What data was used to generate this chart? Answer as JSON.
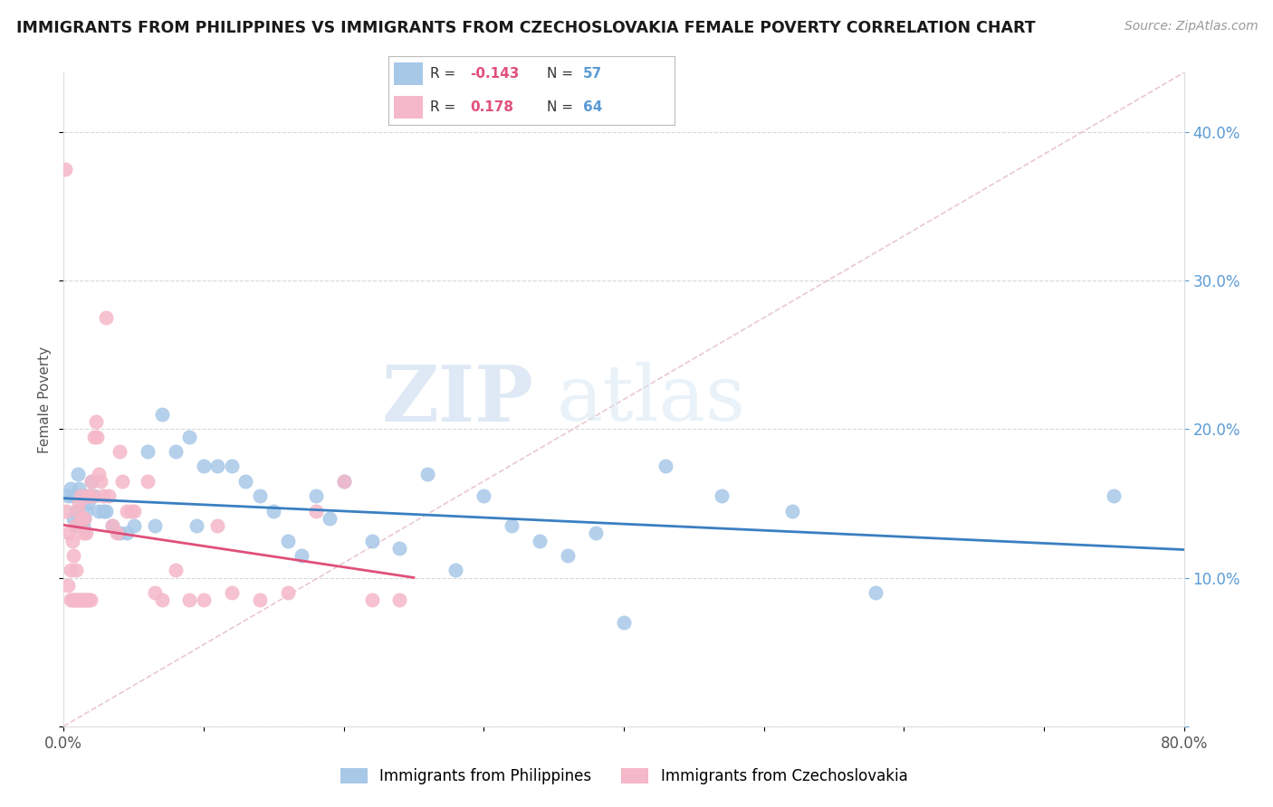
{
  "title": "IMMIGRANTS FROM PHILIPPINES VS IMMIGRANTS FROM CZECHOSLOVAKIA FEMALE POVERTY CORRELATION CHART",
  "source": "Source: ZipAtlas.com",
  "ylabel": "Female Poverty",
  "yticks": [
    0.0,
    0.1,
    0.2,
    0.3,
    0.4
  ],
  "ytick_labels_right": [
    "",
    "10.0%",
    "20.0%",
    "30.0%",
    "40.0%"
  ],
  "xlim": [
    0.0,
    0.8
  ],
  "ylim": [
    0.0,
    0.44
  ],
  "legend1_label": "Immigrants from Philippines",
  "legend2_label": "Immigrants from Czechoslovakia",
  "r1": "-0.143",
  "n1": "57",
  "r2": "0.178",
  "n2": "64",
  "color_blue": "#a8c8e8",
  "color_pink": "#f5b8c8",
  "color_blue_line": "#3a7fc1",
  "color_pink_line": "#e0507a",
  "color_tick": "#5b9bd5",
  "philippines_x": [
    0.003,
    0.005,
    0.006,
    0.007,
    0.008,
    0.009,
    0.01,
    0.01,
    0.011,
    0.012,
    0.013,
    0.014,
    0.015,
    0.016,
    0.017,
    0.018,
    0.02,
    0.022,
    0.025,
    0.028,
    0.03,
    0.035,
    0.04,
    0.045,
    0.05,
    0.06,
    0.065,
    0.07,
    0.08,
    0.09,
    0.095,
    0.1,
    0.11,
    0.12,
    0.13,
    0.14,
    0.15,
    0.16,
    0.17,
    0.18,
    0.19,
    0.2,
    0.22,
    0.24,
    0.26,
    0.28,
    0.3,
    0.32,
    0.34,
    0.36,
    0.38,
    0.4,
    0.43,
    0.47,
    0.52,
    0.58,
    0.75
  ],
  "philippines_y": [
    0.155,
    0.16,
    0.155,
    0.14,
    0.135,
    0.145,
    0.155,
    0.17,
    0.16,
    0.155,
    0.14,
    0.135,
    0.14,
    0.145,
    0.15,
    0.155,
    0.165,
    0.155,
    0.145,
    0.145,
    0.145,
    0.135,
    0.13,
    0.13,
    0.135,
    0.185,
    0.135,
    0.21,
    0.185,
    0.195,
    0.135,
    0.175,
    0.175,
    0.175,
    0.165,
    0.155,
    0.145,
    0.125,
    0.115,
    0.155,
    0.14,
    0.165,
    0.125,
    0.12,
    0.17,
    0.105,
    0.155,
    0.135,
    0.125,
    0.115,
    0.13,
    0.07,
    0.175,
    0.155,
    0.145,
    0.09,
    0.155
  ],
  "czechoslovakia_x": [
    0.001,
    0.002,
    0.003,
    0.004,
    0.005,
    0.005,
    0.006,
    0.006,
    0.007,
    0.007,
    0.008,
    0.008,
    0.009,
    0.009,
    0.01,
    0.01,
    0.011,
    0.011,
    0.012,
    0.012,
    0.013,
    0.013,
    0.014,
    0.014,
    0.015,
    0.015,
    0.016,
    0.016,
    0.017,
    0.017,
    0.018,
    0.018,
    0.019,
    0.02,
    0.021,
    0.022,
    0.023,
    0.024,
    0.025,
    0.026,
    0.028,
    0.03,
    0.032,
    0.035,
    0.038,
    0.04,
    0.042,
    0.045,
    0.048,
    0.05,
    0.06,
    0.065,
    0.07,
    0.08,
    0.09,
    0.1,
    0.11,
    0.12,
    0.14,
    0.16,
    0.18,
    0.2,
    0.22,
    0.24
  ],
  "czechoslovakia_y": [
    0.375,
    0.145,
    0.095,
    0.13,
    0.105,
    0.085,
    0.085,
    0.125,
    0.085,
    0.115,
    0.085,
    0.135,
    0.085,
    0.105,
    0.085,
    0.145,
    0.085,
    0.15,
    0.085,
    0.155,
    0.085,
    0.14,
    0.085,
    0.13,
    0.085,
    0.14,
    0.085,
    0.13,
    0.085,
    0.155,
    0.085,
    0.155,
    0.085,
    0.165,
    0.155,
    0.195,
    0.205,
    0.195,
    0.17,
    0.165,
    0.155,
    0.275,
    0.155,
    0.135,
    0.13,
    0.185,
    0.165,
    0.145,
    0.145,
    0.145,
    0.165,
    0.09,
    0.085,
    0.105,
    0.085,
    0.085,
    0.135,
    0.09,
    0.085,
    0.09,
    0.145,
    0.165,
    0.085,
    0.085
  ],
  "diag_line_x": [
    0.0,
    0.8
  ],
  "diag_line_y": [
    0.0,
    0.44
  ],
  "watermark_zip": "ZIP",
  "watermark_atlas": "atlas"
}
